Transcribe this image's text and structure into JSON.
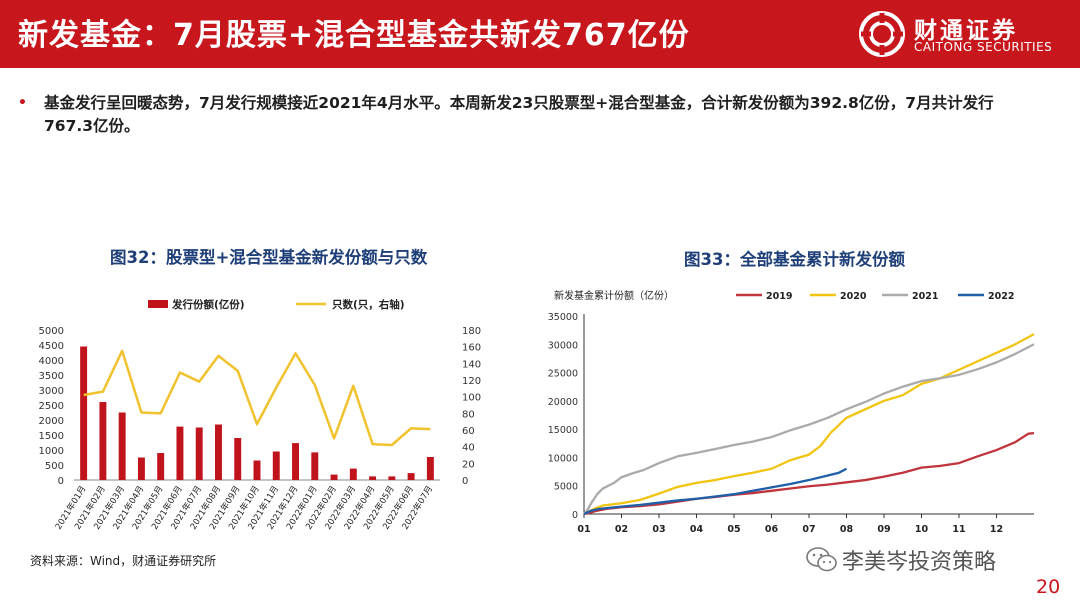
{
  "header": {
    "title": "新发基金：7月股票+混合型基金共新发767亿份"
  },
  "brand": {
    "name_cn": "财通证券",
    "name_en": "CAITONG SECURITIES",
    "color": "#c8161d"
  },
  "summary": {
    "text": "基金发行呈回暖态势，7月发行规模接近2021年4月水平。本周新发23只股票型+混合型基金，合计新发份额为392.8亿份，7月共计发行767.3亿份。"
  },
  "source": "资料来源：Wind，财通证券研究所",
  "watermark": "李美岑投资策略",
  "page_number": "20",
  "chart_data": [
    {
      "type": "bar",
      "title": "图32：股票型+混合型基金新发份额与只数",
      "categories": [
        "2021年01月",
        "2021年02月",
        "2021年03月",
        "2021年04月",
        "2021年05月",
        "2021年06月",
        "2021年07月",
        "2021年08月",
        "2021年09月",
        "2021年10月",
        "2021年11月",
        "2021年12月",
        "2022年01月",
        "2022年02月",
        "2022年03月",
        "2022年04月",
        "2022年05月",
        "2022年06月",
        "2022年07月"
      ],
      "series": [
        {
          "name": "发行份额(亿份)",
          "type": "bar",
          "axis": "left",
          "color": "#c0141c",
          "values": [
            4450,
            2600,
            2250,
            750,
            900,
            1780,
            1750,
            1850,
            1400,
            650,
            950,
            1230,
            920,
            180,
            380,
            120,
            120,
            230,
            767
          ]
        },
        {
          "name": "只数(只，右轴)",
          "type": "line",
          "axis": "right",
          "color": "#f2c12e",
          "values": [
            102,
            106,
            155,
            81,
            80,
            129,
            118,
            149,
            131,
            67,
            111,
            152,
            114,
            50,
            113,
            43,
            42,
            62,
            61
          ]
        }
      ],
      "ylim_left": [
        0,
        5000
      ],
      "yticks_left": [
        0,
        500,
        1000,
        1500,
        2000,
        2500,
        3000,
        3500,
        4000,
        4500,
        5000
      ],
      "ylim_right": [
        0,
        180
      ],
      "yticks_right": [
        0,
        20,
        40,
        60,
        80,
        100,
        120,
        140,
        160,
        180
      ],
      "legend": "top"
    },
    {
      "type": "line",
      "title": "图33：全部基金累计新发份额",
      "legend_title": "新发基金累计份额（亿份）",
      "xticks": [
        "01",
        "02",
        "03",
        "04",
        "05",
        "06",
        "07",
        "08",
        "09",
        "10",
        "11",
        "12"
      ],
      "ylim": [
        0,
        35000
      ],
      "yticks": [
        0,
        5000,
        10000,
        15000,
        20000,
        25000,
        30000,
        35000
      ],
      "legend": "top",
      "series": [
        {
          "name": "2019",
          "color": "#c0343c",
          "x": [
            1.0,
            1.15,
            1.3,
            1.6,
            2.0,
            2.5,
            3.0,
            3.5,
            4.0,
            4.5,
            5.0,
            5.5,
            6.0,
            6.5,
            7.0,
            7.5,
            8.0,
            8.5,
            9.0,
            9.5,
            10.0,
            10.5,
            11.0,
            11.5,
            12.0,
            12.5,
            12.85,
            13.0
          ],
          "y": [
            0,
            200,
            500,
            900,
            1200,
            1400,
            1700,
            2200,
            2700,
            3000,
            3400,
            3700,
            4100,
            4500,
            4900,
            5200,
            5600,
            6000,
            6600,
            7300,
            8200,
            8500,
            9000,
            10200,
            11300,
            12700,
            14200,
            14300
          ]
        },
        {
          "name": "2020",
          "color": "#f1c40f",
          "x": [
            1.0,
            1.15,
            1.3,
            1.5,
            2.0,
            2.5,
            3.0,
            3.5,
            4.0,
            4.5,
            5.0,
            5.5,
            6.0,
            6.5,
            7.0,
            7.3,
            7.6,
            8.0,
            8.5,
            9.0,
            9.5,
            10.0,
            10.5,
            11.0,
            11.5,
            12.0,
            12.5,
            13.0
          ],
          "y": [
            0,
            500,
            1000,
            1500,
            1900,
            2500,
            3600,
            4800,
            5500,
            6000,
            6700,
            7300,
            8000,
            9500,
            10500,
            12000,
            14500,
            17000,
            18500,
            20000,
            21000,
            23000,
            24000,
            25500,
            27000,
            28500,
            30000,
            31800
          ]
        },
        {
          "name": "2021",
          "color": "#aaaaaa",
          "x": [
            1.0,
            1.1,
            1.2,
            1.35,
            1.5,
            1.8,
            2.0,
            2.3,
            2.6,
            3.0,
            3.5,
            4.0,
            4.5,
            5.0,
            5.5,
            6.0,
            6.5,
            7.0,
            7.5,
            8.0,
            8.5,
            9.0,
            9.5,
            10.0,
            10.5,
            11.0,
            11.5,
            12.0,
            12.5,
            13.0
          ],
          "y": [
            0,
            800,
            2000,
            3500,
            4500,
            5500,
            6500,
            7200,
            7800,
            9000,
            10200,
            10800,
            11500,
            12200,
            12800,
            13600,
            14800,
            15800,
            17000,
            18500,
            19800,
            21300,
            22500,
            23500,
            24000,
            24600,
            25600,
            26800,
            28300,
            30000
          ]
        },
        {
          "name": "2022",
          "color": "#1f5fa8",
          "x": [
            1.0,
            1.1,
            1.2,
            1.4,
            1.7,
            2.0,
            2.5,
            3.0,
            3.5,
            4.0,
            4.5,
            5.0,
            5.5,
            6.0,
            6.5,
            7.0,
            7.5,
            7.8,
            8.0
          ],
          "y": [
            0,
            300,
            600,
            900,
            1100,
            1300,
            1600,
            2000,
            2400,
            2700,
            3100,
            3500,
            4100,
            4700,
            5300,
            6000,
            6800,
            7300,
            8000
          ]
        }
      ]
    }
  ]
}
